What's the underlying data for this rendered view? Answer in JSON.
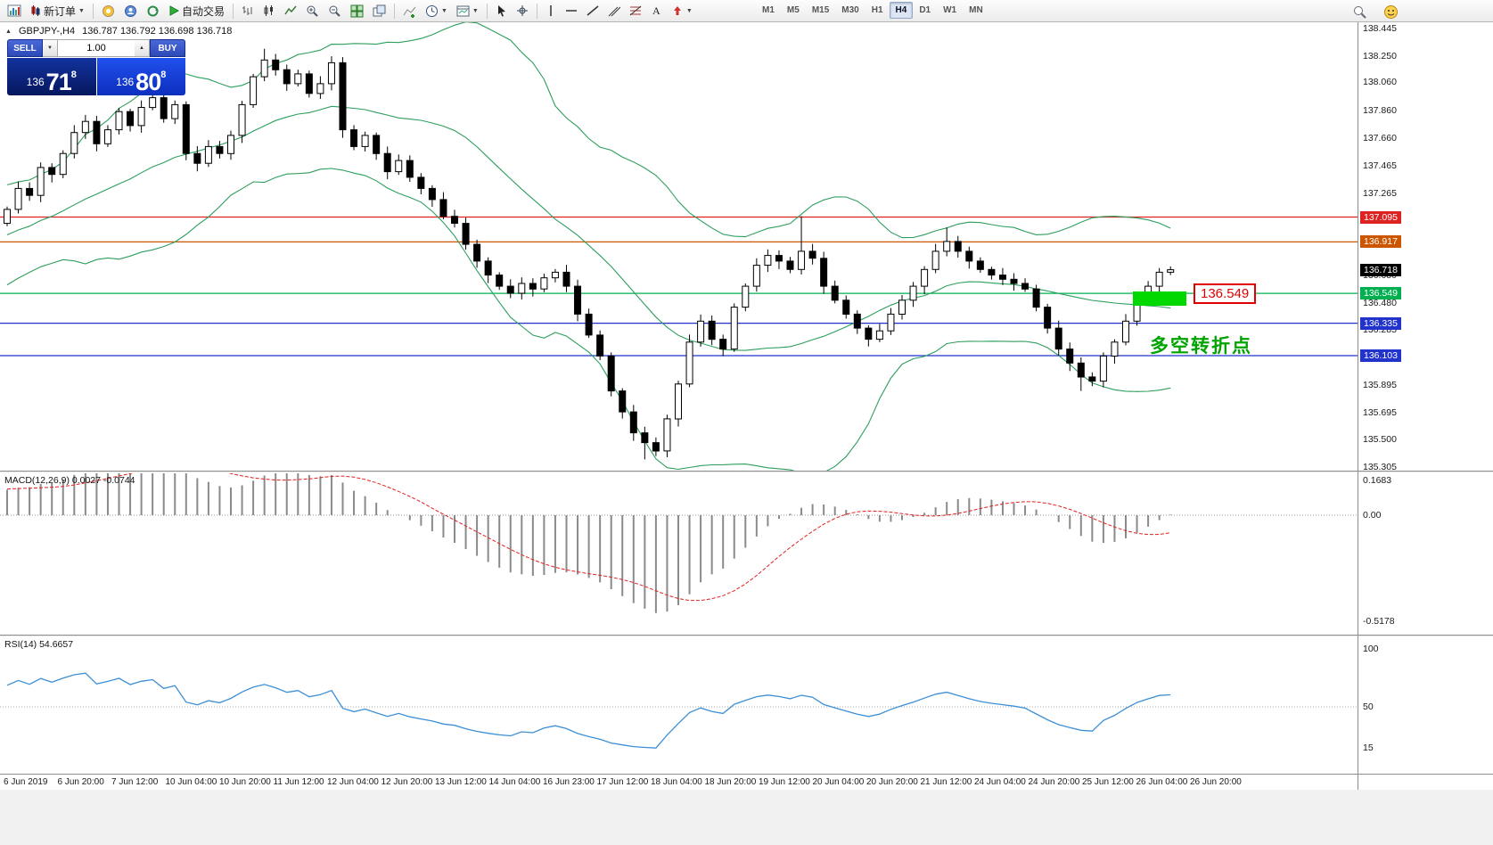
{
  "toolbar": {
    "new_order_label": "新订单",
    "auto_trading_label": "自动交易",
    "timeframes": [
      "M1",
      "M5",
      "M15",
      "M30",
      "H1",
      "H4",
      "D1",
      "W1",
      "MN"
    ],
    "active_timeframe": "H4",
    "icon_names": [
      "chart-app-icon",
      "new-order-icon",
      "mql5-icon",
      "profile-icon",
      "refresh-icon",
      "play-icon",
      "bar-chart-icon",
      "candlestick-chart-icon",
      "line-chart-icon",
      "zoom-in-icon",
      "zoom-out-icon",
      "tile-windows-icon",
      "cascade-windows-icon",
      "indicators-icon",
      "periods-icon",
      "templates-icon",
      "cursor-icon",
      "crosshair-icon",
      "vertical-line-icon",
      "horizontal-line-icon",
      "trendline-icon",
      "channel-icon",
      "fibonacci-icon",
      "text-label-icon",
      "arrows-icon",
      "search-icon",
      "community-icon"
    ]
  },
  "chart": {
    "symbol_period": "GBPJPY-,H4",
    "ohlc_text": "136.787 136.792 136.698 136.718"
  },
  "trade": {
    "sell_label": "SELL",
    "buy_label": "BUY",
    "volume": "1.00",
    "sell_price": {
      "prefix": "136",
      "big": "71",
      "sup": "8"
    },
    "buy_price": {
      "prefix": "136",
      "big": "80",
      "sup": "8"
    }
  },
  "annotations": {
    "price_label": "136.549",
    "turning_point_text": "多空转折点",
    "highlight_color": "#00d800",
    "callout_color": "#e00000",
    "note_color": "#00a300"
  },
  "indicators": {
    "macd_label": "MACD(12,26,9) 0.0027 -0.0744",
    "rsi_label": "RSI(14) 54.6657"
  },
  "chart_data": {
    "type": "candlestick",
    "symbol": "GBPJPY-",
    "period": "H4",
    "price_max": 138.445,
    "price_min": 135.305,
    "up_color": "#ffffff",
    "down_color": "#000000",
    "bollinger": {
      "period": 20,
      "deviation": 2,
      "color": "#2e9e5e"
    },
    "first_open": 137.05,
    "pre_closes": [
      136.6,
      136.7,
      136.65,
      136.8,
      136.75,
      136.85,
      136.95,
      136.9,
      137.0,
      137.1,
      137.05,
      137.0,
      137.1,
      137.2,
      137.15,
      137.1,
      137.05,
      137.15,
      137.1
    ],
    "closes": [
      137.15,
      137.3,
      137.25,
      137.45,
      137.4,
      137.55,
      137.7,
      137.78,
      137.62,
      137.72,
      137.85,
      137.75,
      137.88,
      137.95,
      137.8,
      137.9,
      137.55,
      137.48,
      137.6,
      137.55,
      137.68,
      137.9,
      138.1,
      138.22,
      138.15,
      138.05,
      138.12,
      137.98,
      138.05,
      138.2,
      137.72,
      137.6,
      137.68,
      137.55,
      137.42,
      137.5,
      137.38,
      137.3,
      137.22,
      137.1,
      137.05,
      136.9,
      136.78,
      136.68,
      136.6,
      136.55,
      136.62,
      136.58,
      136.66,
      136.7,
      136.6,
      136.4,
      136.25,
      136.1,
      135.85,
      135.7,
      135.55,
      135.48,
      135.42,
      135.65,
      135.9,
      136.2,
      136.35,
      136.22,
      136.15,
      136.45,
      136.6,
      136.75,
      136.82,
      136.78,
      136.72,
      136.85,
      136.8,
      136.6,
      136.5,
      136.4,
      136.3,
      136.22,
      136.28,
      136.4,
      136.5,
      136.6,
      136.72,
      136.85,
      136.92,
      136.85,
      136.78,
      136.72,
      136.68,
      136.65,
      136.62,
      136.58,
      136.45,
      136.3,
      136.15,
      136.05,
      135.95,
      135.92,
      136.1,
      136.2,
      136.35,
      136.5,
      136.6,
      136.7,
      136.718
    ],
    "wick_overrides_high": {
      "23": 138.3,
      "71": 137.1,
      "84": 137.02
    },
    "wick_overrides_low": {
      "57": 135.36,
      "96": 135.85
    },
    "current_price": 136.718,
    "current_price_color": "#000000",
    "hlines": [
      {
        "price": 137.095,
        "color": "#dd2222"
      },
      {
        "price": 136.917,
        "color": "#cc5500"
      },
      {
        "price": 136.549,
        "color": "#00b050"
      },
      {
        "price": 136.335,
        "color": "#2233cc"
      },
      {
        "price": 136.103,
        "color": "#2233cc"
      }
    ],
    "axis_ticks": [
      138.445,
      138.25,
      138.06,
      137.86,
      137.66,
      137.465,
      137.265,
      136.68,
      136.48,
      136.285,
      135.895,
      135.695,
      135.5,
      135.305
    ],
    "macd_axis": [
      {
        "v": 0.1683,
        "t": "0.1683"
      },
      {
        "v": 0,
        "t": "0.00"
      },
      {
        "v": -0.5178,
        "t": "-0.5178"
      }
    ],
    "rsi_axis": [
      {
        "v": 100,
        "t": "100"
      },
      {
        "v": 50,
        "t": "50"
      },
      {
        "v": 15,
        "t": "15"
      }
    ],
    "rsi_color": "#3d8fd6",
    "macd_hist_color": "#8a8a8a",
    "macd_signal_color": "#e02020",
    "dates": [
      "6 Jun 2019",
      "6 Jun 20:00",
      "7 Jun 12:00",
      "10 Jun 04:00",
      "10 Jun 20:00",
      "11 Jun 12:00",
      "12 Jun 04:00",
      "12 Jun 20:00",
      "13 Jun 12:00",
      "14 Jun 04:00",
      "16 Jun 23:00",
      "17 Jun 12:00",
      "18 Jun 04:00",
      "18 Jun 20:00",
      "19 Jun 12:00",
      "20 Jun 04:00",
      "20 Jun 20:00",
      "21 Jun 12:00",
      "24 Jun 04:00",
      "24 Jun 20:00",
      "25 Jun 12:00",
      "26 Jun 04:00",
      "26 Jun 20:00"
    ]
  }
}
